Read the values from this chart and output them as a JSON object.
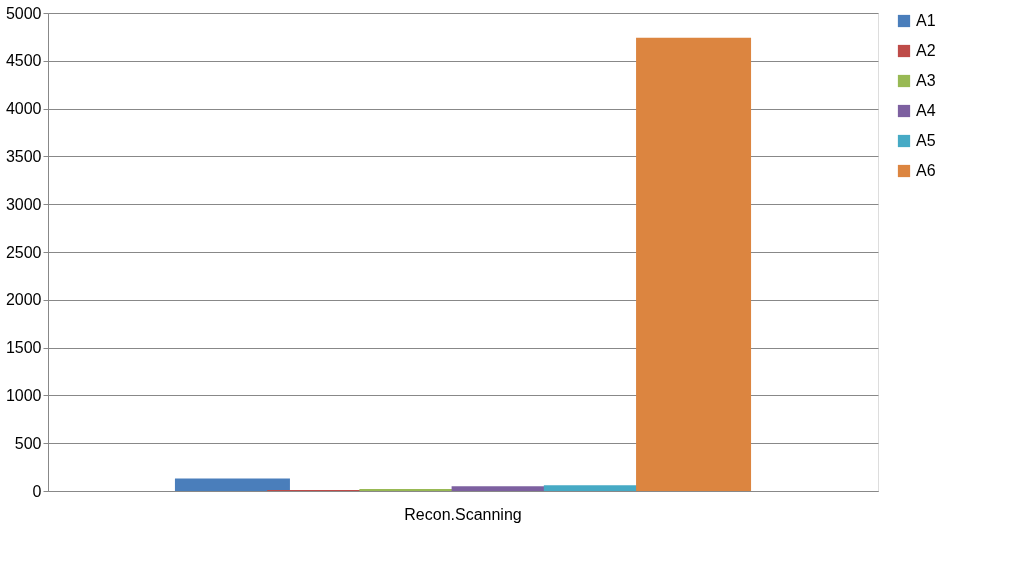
{
  "chart_data": {
    "type": "bar",
    "categories": [
      "Recon.Scanning"
    ],
    "series": [
      {
        "name": "A1",
        "color": "#4a7ebb",
        "values": [
          130
        ]
      },
      {
        "name": "A2",
        "color": "#be4b48",
        "values": [
          10
        ]
      },
      {
        "name": "A3",
        "color": "#98b954",
        "values": [
          20
        ]
      },
      {
        "name": "A4",
        "color": "#7d60a0",
        "values": [
          50
        ]
      },
      {
        "name": "A5",
        "color": "#46aac5",
        "values": [
          60
        ]
      },
      {
        "name": "A6",
        "color": "#dc8540",
        "values": [
          4740
        ]
      }
    ],
    "ylim": [
      0,
      5000
    ],
    "yticks": [
      0,
      500,
      1000,
      1500,
      2000,
      2500,
      3000,
      3500,
      4000,
      4500,
      5000
    ],
    "grid": "y",
    "legend": "right"
  }
}
